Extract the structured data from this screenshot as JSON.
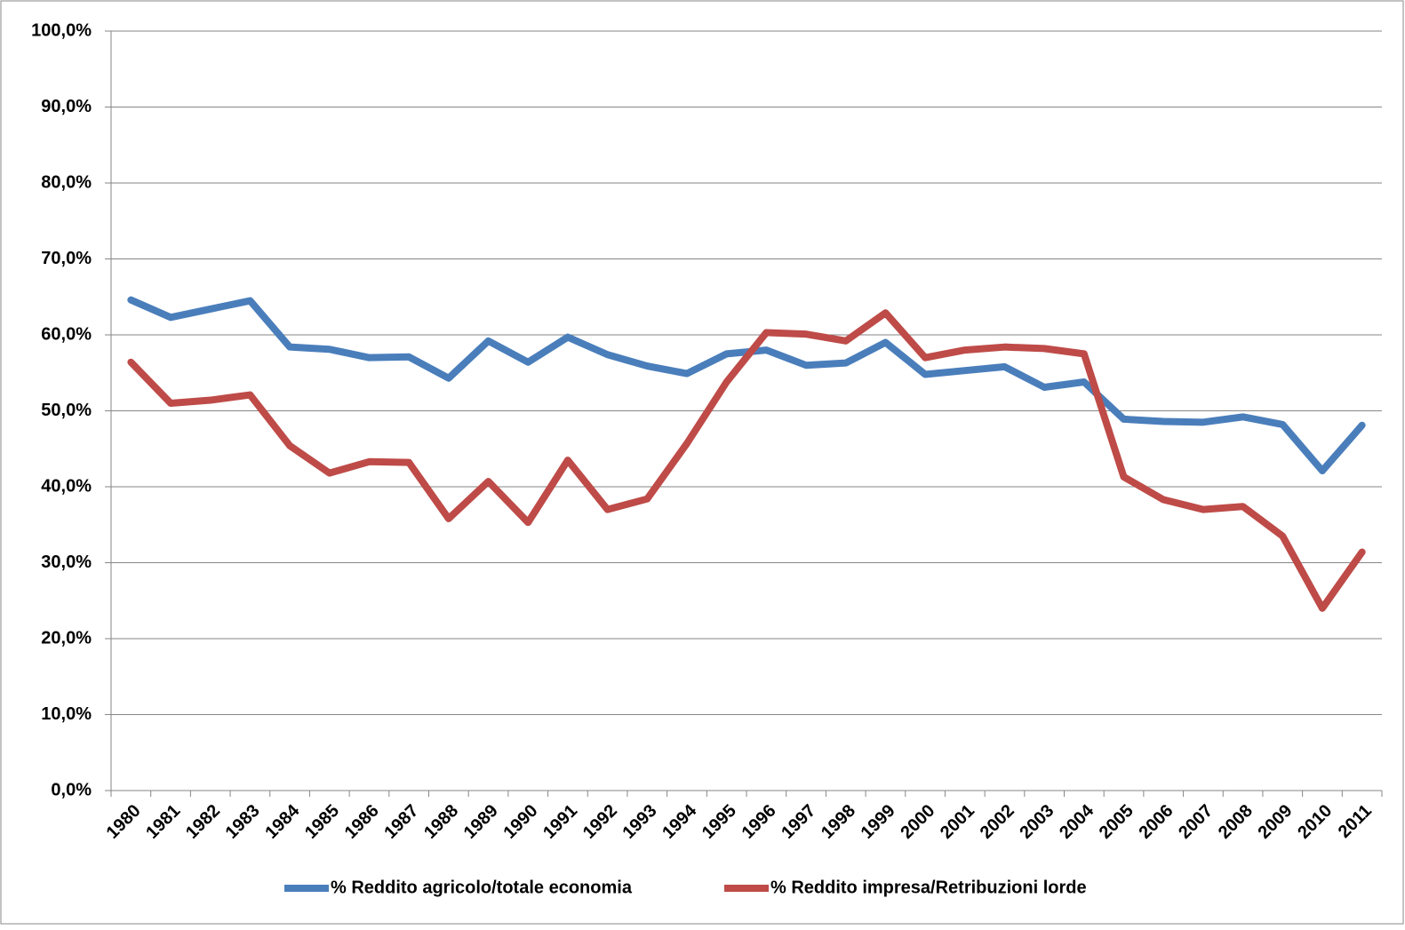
{
  "chart_data": {
    "type": "line",
    "categories": [
      "1980",
      "1981",
      "1982",
      "1983",
      "1984",
      "1985",
      "1986",
      "1987",
      "1988",
      "1989",
      "1990",
      "1991",
      "1992",
      "1993",
      "1994",
      "1995",
      "1996",
      "1997",
      "1998",
      "1999",
      "2000",
      "2001",
      "2002",
      "2003",
      "2004",
      "2005",
      "2006",
      "2007",
      "2008",
      "2009",
      "2010",
      "2011"
    ],
    "series": [
      {
        "name": "% Reddito agricolo/totale economia",
        "color": "#4a7ebb",
        "values": [
          64.6,
          62.3,
          63.4,
          64.5,
          58.4,
          58.1,
          57.0,
          57.1,
          54.3,
          59.2,
          56.4,
          59.7,
          57.4,
          55.9,
          54.9,
          57.5,
          58.0,
          56.0,
          56.3,
          59.0,
          54.8,
          55.3,
          55.8,
          53.1,
          53.8,
          48.9,
          48.6,
          48.5,
          49.2,
          48.2,
          42.1,
          48.1
        ]
      },
      {
        "name": "% Reddito impresa/Retribuzioni lorde",
        "color": "#be4b48",
        "values": [
          56.4,
          51.0,
          51.4,
          52.1,
          45.4,
          41.8,
          43.3,
          43.2,
          35.8,
          40.7,
          35.3,
          43.5,
          37.0,
          38.4,
          45.7,
          53.8,
          60.3,
          60.1,
          59.2,
          62.9,
          57.0,
          58.0,
          58.4,
          58.2,
          57.5,
          41.3,
          38.3,
          37.0,
          37.4,
          33.5,
          24.0,
          31.4
        ]
      }
    ],
    "ylim": [
      0,
      100
    ],
    "yticks": [
      {
        "value": 0,
        "label": "0,0%"
      },
      {
        "value": 10,
        "label": "10,0%"
      },
      {
        "value": 20,
        "label": "20,0%"
      },
      {
        "value": 30,
        "label": "30,0%"
      },
      {
        "value": 40,
        "label": "40,0%"
      },
      {
        "value": 50,
        "label": "50,0%"
      },
      {
        "value": 60,
        "label": "60,0%"
      },
      {
        "value": 70,
        "label": "70,0%"
      },
      {
        "value": 80,
        "label": "80,0%"
      },
      {
        "value": 90,
        "label": "90,0%"
      },
      {
        "value": 100,
        "label": "100,0%"
      }
    ],
    "grid": true,
    "legend": "bottom"
  }
}
